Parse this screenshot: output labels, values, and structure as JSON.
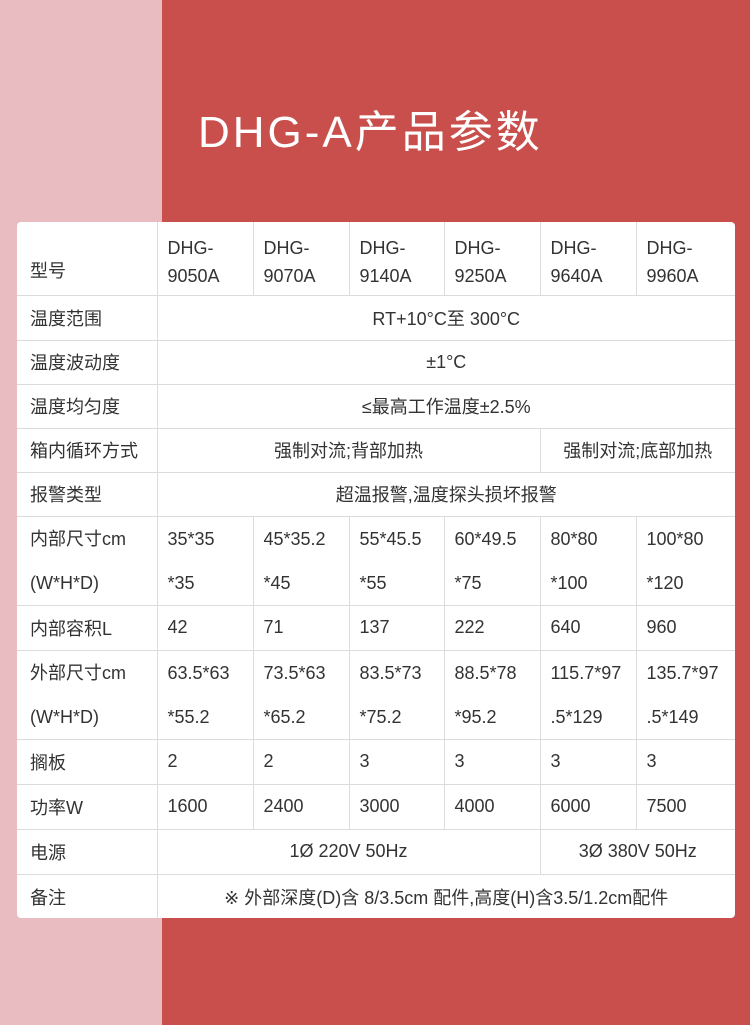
{
  "title": "DHG-A产品参数",
  "colors": {
    "background_left": "#e8bcc1",
    "background_right": "#c94f4c",
    "card": "#ffffff",
    "text": "#333333"
  },
  "table": {
    "header": {
      "label": "型号",
      "models": [
        "DHG-\n9050A",
        "DHG-\n9070A",
        "DHG-\n9140A",
        "DHG-\n9250A",
        "DHG-\n9640A",
        "DHG-\n9960A"
      ]
    },
    "rows": [
      {
        "label": "温度范围",
        "cells": [
          {
            "text": "RT+10°C至 300°C",
            "span": 6
          }
        ]
      },
      {
        "label": "温度波动度",
        "cells": [
          {
            "text": "±1°C",
            "span": 6
          }
        ]
      },
      {
        "label": "温度均匀度",
        "cells": [
          {
            "text": "≤最高工作温度±2.5%",
            "span": 6
          }
        ]
      },
      {
        "label": "箱内循环方式",
        "cells": [
          {
            "text": "强制对流;背部加热",
            "span": 4
          },
          {
            "text": "强制对流;底部加热",
            "span": 2
          }
        ]
      },
      {
        "label": "报警类型",
        "cells": [
          {
            "text": "超温报警,温度探头损坏报警",
            "span": 6
          }
        ]
      },
      {
        "label": "内部尺寸cm\n(W*H*D)",
        "two": true,
        "cells": [
          {
            "text": "35*35\n*35"
          },
          {
            "text": "45*35.2\n*45"
          },
          {
            "text": "55*45.5\n*55"
          },
          {
            "text": "60*49.5\n*75"
          },
          {
            "text": "80*80\n*100"
          },
          {
            "text": "100*80\n*120"
          }
        ]
      },
      {
        "label": "内部容积L",
        "cells": [
          {
            "text": "42"
          },
          {
            "text": "71"
          },
          {
            "text": "137"
          },
          {
            "text": "222"
          },
          {
            "text": "640"
          },
          {
            "text": "960"
          }
        ]
      },
      {
        "label": "外部尺寸cm\n(W*H*D)",
        "two": true,
        "cells": [
          {
            "text": "63.5*63\n*55.2"
          },
          {
            "text": "73.5*63\n*65.2"
          },
          {
            "text": "83.5*73\n*75.2"
          },
          {
            "text": "88.5*78\n*95.2"
          },
          {
            "text": "115.7*97\n.5*129"
          },
          {
            "text": "135.7*97\n.5*149"
          }
        ]
      },
      {
        "label": "搁板",
        "cells": [
          {
            "text": "2"
          },
          {
            "text": "2"
          },
          {
            "text": "3"
          },
          {
            "text": "3"
          },
          {
            "text": "3"
          },
          {
            "text": "3"
          }
        ]
      },
      {
        "label": "功率W",
        "cells": [
          {
            "text": "1600"
          },
          {
            "text": "2400"
          },
          {
            "text": "3000"
          },
          {
            "text": "4000"
          },
          {
            "text": "6000"
          },
          {
            "text": "7500"
          }
        ]
      },
      {
        "label": "电源",
        "cells": [
          {
            "text": "1Ø 220V 50Hz",
            "span": 4
          },
          {
            "text": "3Ø 380V 50Hz",
            "span": 2
          }
        ]
      },
      {
        "label": "备注",
        "cells": [
          {
            "text": "※ 外部深度(D)含 8/3.5cm 配件,高度(H)含3.5/1.2cm配件",
            "span": 6
          }
        ]
      }
    ]
  }
}
